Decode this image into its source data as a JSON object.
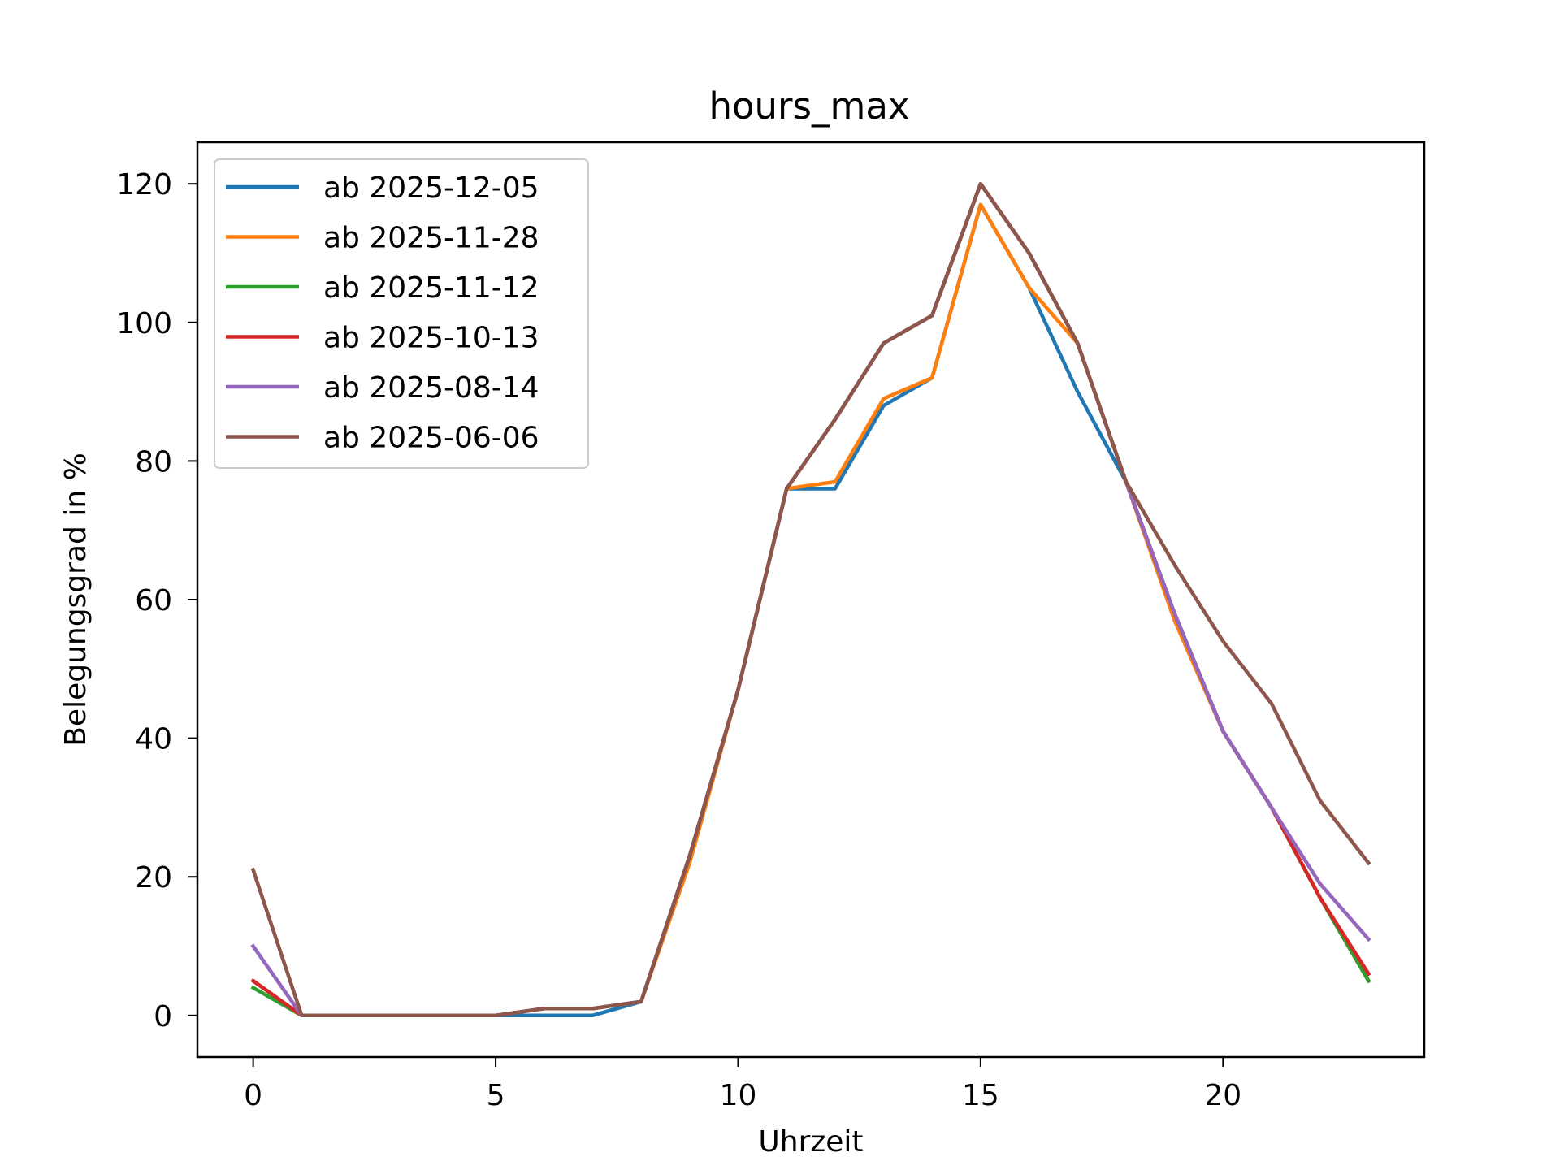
{
  "chart_data": {
    "type": "line",
    "title": "hours_max",
    "xlabel": "Uhrzeit",
    "ylabel": "Belegungsgrad in %",
    "xlim": [
      -1.15,
      24.15
    ],
    "ylim": [
      -6,
      126
    ],
    "xticks": [
      0,
      5,
      10,
      15,
      20
    ],
    "yticks": [
      0,
      20,
      40,
      60,
      80,
      100,
      120
    ],
    "grid": false,
    "legend_position": "upper-left",
    "x": [
      0,
      1,
      2,
      3,
      4,
      5,
      6,
      7,
      8,
      9,
      10,
      11,
      12,
      13,
      14,
      15,
      16,
      17,
      18,
      19,
      20,
      21,
      22,
      23
    ],
    "series": [
      {
        "name": "ab 2025-12-05",
        "color": "#1f77b4",
        "values": [
          5,
          0,
          0,
          0,
          0,
          0,
          0,
          0,
          2,
          23,
          47,
          76,
          76,
          88,
          92,
          117,
          105,
          90,
          77,
          58,
          41,
          30,
          17,
          5
        ]
      },
      {
        "name": "ab 2025-11-28",
        "color": "#ff7f0e",
        "values": [
          5,
          0,
          0,
          0,
          0,
          0,
          1,
          1,
          2,
          22,
          47,
          76,
          77,
          89,
          92,
          117,
          105,
          97,
          77,
          57,
          41,
          30,
          17,
          5
        ]
      },
      {
        "name": "ab 2025-11-12",
        "color": "#2ca02c",
        "values": [
          4,
          0,
          0,
          0,
          0,
          0,
          1,
          1,
          2,
          23,
          47,
          76,
          86,
          97,
          101,
          120,
          110,
          97,
          77,
          58,
          41,
          30,
          17,
          5
        ]
      },
      {
        "name": "ab 2025-10-13",
        "color": "#d62728",
        "values": [
          5,
          0,
          0,
          0,
          0,
          0,
          1,
          1,
          2,
          23,
          47,
          76,
          86,
          97,
          101,
          120,
          110,
          97,
          77,
          58,
          41,
          30,
          17,
          6
        ]
      },
      {
        "name": "ab 2025-08-14",
        "color": "#9467bd",
        "values": [
          10,
          0,
          0,
          0,
          0,
          0,
          1,
          1,
          2,
          23,
          47,
          76,
          86,
          97,
          101,
          120,
          110,
          97,
          77,
          58,
          41,
          30,
          19,
          11
        ]
      },
      {
        "name": "ab 2025-06-06",
        "color": "#8c564b",
        "values": [
          21,
          0,
          0,
          0,
          0,
          0,
          1,
          1,
          2,
          23,
          47,
          76,
          86,
          97,
          101,
          120,
          110,
          97,
          77,
          65,
          54,
          45,
          31,
          22
        ]
      }
    ]
  }
}
